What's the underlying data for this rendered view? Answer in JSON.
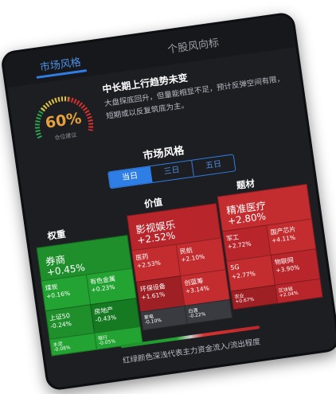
{
  "tabs": {
    "market_style": "市场风格",
    "stock_trend": "个股风向标"
  },
  "gauge": {
    "percent": "60%",
    "caption": "仓位建议",
    "level": 0.6
  },
  "summary": {
    "headline": "中长期上行趋势未变",
    "description": "大盘探底回升，但量能相显不足，预计反弹空间有限，短期或以反复筑底为主。"
  },
  "section": {
    "title": "市场风格",
    "periods": [
      "当日",
      "三日",
      "五日"
    ],
    "active_period": "当日"
  },
  "columns": {
    "weight": "权重",
    "value": "价值",
    "theme": "题材"
  },
  "heatmap": {
    "weight": {
      "big": {
        "name": "券商",
        "change": "+0.45%"
      },
      "cells": [
        {
          "name": "煤炭",
          "change": "+0.16%"
        },
        {
          "name": "有色金属",
          "change": "+0.23%"
        },
        {
          "name": "上证50",
          "change": "-0.24%"
        },
        {
          "name": "房地产",
          "change": "-0.43%"
        },
        {
          "name": "水泥",
          "change": "-0.08%"
        },
        {
          "name": "银行",
          "change": "-0.05%"
        }
      ]
    },
    "value": {
      "big": {
        "name": "影视娱乐",
        "change": "+2.52%"
      },
      "cells": [
        {
          "name": "医药",
          "change": "+2.53%"
        },
        {
          "name": "民航",
          "change": "+2.10%"
        },
        {
          "name": "环保设备",
          "change": "+1.61%"
        },
        {
          "name": "创蓝筹",
          "change": "+3.14%"
        },
        {
          "name": "家电",
          "change": "-0.10%"
        },
        {
          "name": "白酒",
          "change": "-0.22%"
        }
      ]
    },
    "theme": {
      "big": {
        "name": "精准医疗",
        "change": "+2.80%"
      },
      "cells": [
        {
          "name": "军工",
          "change": "+2.72%"
        },
        {
          "name": "国产芯片",
          "change": "+4.11%"
        },
        {
          "name": "5G",
          "change": "+2.77%"
        },
        {
          "name": "物联网",
          "change": "+3.90%"
        },
        {
          "name": "农业",
          "change": "+0.67%"
        },
        {
          "name": "区块链",
          "change": "+2.04%"
        }
      ]
    }
  },
  "legend": {
    "text": "红绿颜色深浅代表主力资金流入/流出程度"
  },
  "colors": {
    "accent": "#2f7ee6",
    "up": "#b8262b",
    "down": "#1f8f2c",
    "gauge": "#e5a23c"
  }
}
